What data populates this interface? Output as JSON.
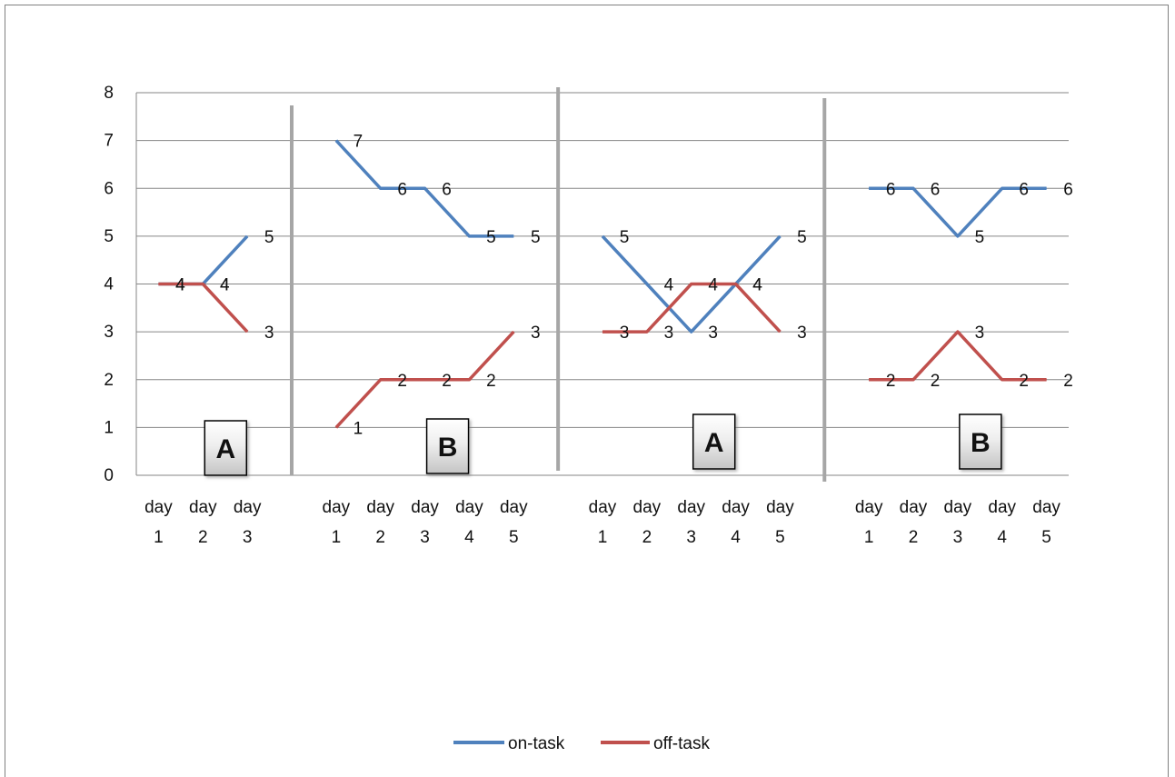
{
  "chart_data": {
    "type": "line",
    "title": "",
    "xlabel": "",
    "ylabel": "",
    "ylim": [
      0,
      8
    ],
    "y_ticks": [
      "0",
      "1",
      "2",
      "3",
      "4",
      "5",
      "6",
      "7",
      "8"
    ],
    "grid": true,
    "legend_placement": "bottom",
    "categories": [
      "day 1",
      "day 2",
      "day 3",
      "",
      "day 1",
      "day 2",
      "day 3",
      "day 4",
      "day 5",
      "",
      "day 1",
      "day 2",
      "day 3",
      "day 4",
      "day 5",
      "",
      "day 1",
      "day 2",
      "day 3",
      "day 4",
      "day 5"
    ],
    "phase_labels": [
      {
        "label": "A",
        "start": 0,
        "end": 2
      },
      {
        "label": "B",
        "start": 4,
        "end": 8
      },
      {
        "label": "A",
        "start": 10,
        "end": 14
      },
      {
        "label": "B",
        "start": 16,
        "end": 20
      }
    ],
    "phase_dividers": [
      3,
      9,
      15
    ],
    "series": [
      {
        "name": "on-task",
        "color": "#4f81bd",
        "values": [
          4,
          4,
          5,
          null,
          7,
          6,
          6,
          5,
          5,
          null,
          5,
          4,
          3,
          4,
          5,
          null,
          6,
          6,
          5,
          6,
          6
        ]
      },
      {
        "name": "off-task",
        "color": "#c0504d",
        "values": [
          4,
          4,
          3,
          null,
          1,
          2,
          2,
          2,
          3,
          null,
          3,
          3,
          4,
          4,
          3,
          null,
          2,
          2,
          3,
          2,
          2
        ]
      }
    ],
    "colors": {
      "gridline": "#868686",
      "axis": "#868686",
      "divider": "#a6a6a6",
      "phase_box_border": "#000000"
    }
  }
}
